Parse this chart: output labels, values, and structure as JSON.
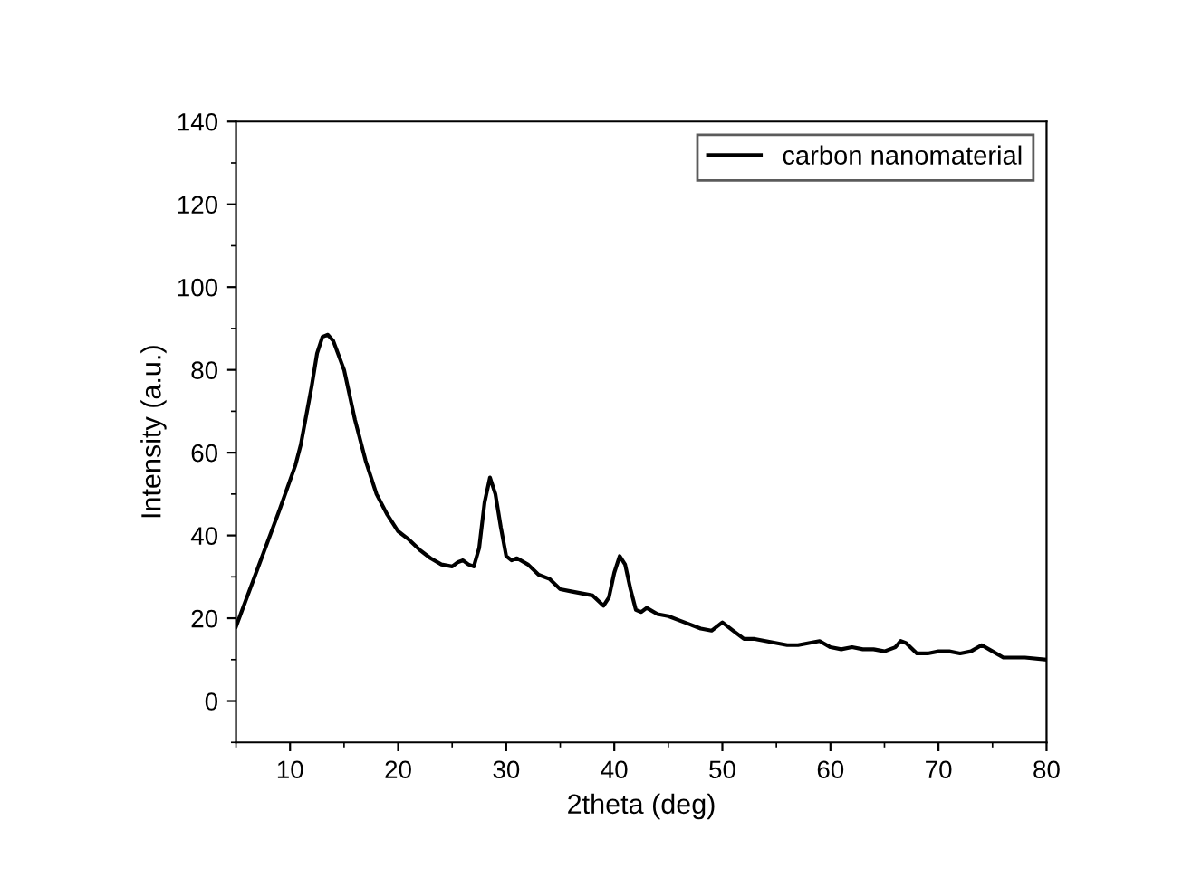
{
  "chart_data": {
    "type": "line",
    "xlabel": "2theta (deg)",
    "ylabel": "Intensity (a.u.)",
    "xlim": [
      5,
      80
    ],
    "ylim": [
      -10,
      140
    ],
    "xticks": [
      10,
      20,
      30,
      40,
      50,
      60,
      70,
      80
    ],
    "yticks": [
      0,
      20,
      40,
      60,
      80,
      100,
      120,
      140
    ],
    "grid": false,
    "legend": "top right",
    "marker": "none",
    "line_style": "solid",
    "series": [
      {
        "name": "carbon nanomaterial",
        "color": "#000000",
        "x": [
          5,
          7,
          9,
          10.5,
          11,
          12,
          12.5,
          13,
          13.5,
          14,
          15,
          16,
          17,
          18,
          19,
          20,
          21,
          22,
          23,
          24,
          25,
          25.5,
          26,
          26.5,
          27,
          27.5,
          28,
          28.5,
          29,
          29.5,
          30,
          30.5,
          31,
          32,
          33,
          34,
          35,
          36,
          37,
          38,
          39,
          39.5,
          40,
          40.5,
          41,
          41.5,
          42,
          42.5,
          43,
          44,
          45,
          46,
          47,
          48,
          49,
          50,
          51,
          52,
          53,
          54,
          55,
          56,
          57,
          58,
          59,
          60,
          61,
          62,
          63,
          64,
          65,
          66,
          66.5,
          67,
          68,
          69,
          70,
          71,
          72,
          73,
          74,
          75,
          76,
          78,
          80
        ],
        "values": [
          18,
          32,
          46,
          57,
          62,
          76,
          84,
          88,
          88.5,
          87,
          80,
          68,
          58,
          50,
          45,
          41,
          39,
          36.5,
          34.5,
          33,
          32.5,
          33.5,
          34,
          33,
          32.5,
          37,
          48,
          54,
          50,
          42,
          35,
          34,
          34.5,
          33,
          30.5,
          29.5,
          27,
          26.5,
          26,
          25.5,
          23,
          25,
          31,
          35,
          33,
          27,
          22,
          21.5,
          22.5,
          21,
          20.5,
          19.5,
          18.5,
          17.5,
          17,
          19,
          17,
          15,
          15,
          14.5,
          14,
          13.5,
          13.5,
          14,
          14.5,
          13,
          12.5,
          13,
          12.5,
          12.5,
          12,
          13,
          14.5,
          14,
          11.5,
          11.5,
          12,
          12,
          11.5,
          12,
          13.5,
          12,
          10.5,
          10.5,
          10
        ]
      }
    ]
  }
}
